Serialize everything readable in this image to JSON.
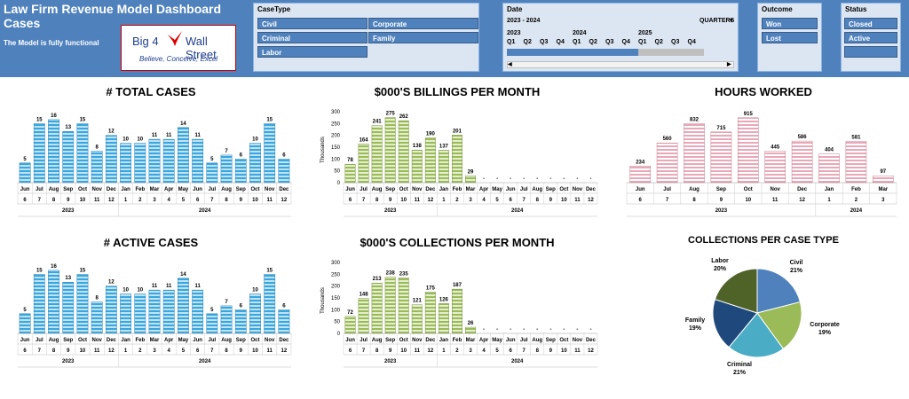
{
  "header": {
    "title": "Law Firm Revenue Model Dashboard Cases",
    "subtitle": "The Model is fully functional",
    "logo": {
      "text_left": "Big 4",
      "text_right": "Wall Street",
      "tagline": "Believe, Conceive, Excel"
    }
  },
  "slicers": {
    "casetype": {
      "title": "CaseType",
      "items": [
        "Civil",
        "Corporate",
        "Criminal",
        "Family",
        "Labor"
      ]
    },
    "date": {
      "title": "Date",
      "range": "2023 - 2024",
      "level": "QUARTERS",
      "years": [
        "2023",
        "2024",
        "2025"
      ],
      "quarters": [
        "Q1",
        "Q2",
        "Q3",
        "Q4",
        "Q1",
        "Q2",
        "Q3",
        "Q4",
        "Q1",
        "Q2",
        "Q3",
        "Q4"
      ]
    },
    "outcome": {
      "title": "Outcome",
      "items": [
        "Won",
        "Lost"
      ]
    },
    "status": {
      "title": "Status",
      "items": [
        "Closed",
        "Active"
      ]
    }
  },
  "colors": {
    "header_bg": "#4f81bd",
    "slicer_btn": "#4f81bd",
    "blue_bar": "#3aa6dd",
    "green_bar": "#9bbb59",
    "red_bar": "#e8a8b8"
  },
  "chart_data": [
    {
      "type": "bar",
      "title": "# TOTAL CASES",
      "categories": [
        "Jun",
        "Jul",
        "Aug",
        "Sep",
        "Oct",
        "Nov",
        "Dec",
        "Jan",
        "Feb",
        "Mar",
        "Apr",
        "May",
        "Jun",
        "Jul",
        "Aug",
        "Sep",
        "Oct",
        "Nov",
        "Dec"
      ],
      "month_numbers": [
        "6",
        "7",
        "8",
        "9",
        "10",
        "11",
        "12",
        "1",
        "2",
        "3",
        "4",
        "5",
        "6",
        "7",
        "8",
        "9",
        "10",
        "11",
        "12"
      ],
      "years": [
        "2023",
        "2024"
      ],
      "values": [
        5,
        15,
        16,
        13,
        15,
        8,
        12,
        10,
        10,
        11,
        11,
        14,
        11,
        5,
        7,
        6,
        10,
        15,
        6
      ]
    },
    {
      "type": "bar",
      "title": "$000'S BILLINGS PER MONTH",
      "ylabel": "Thousands",
      "yticks": [
        "0",
        "50",
        "100",
        "150",
        "200",
        "250",
        "300"
      ],
      "ylim": [
        0,
        300
      ],
      "categories": [
        "Jun",
        "Jul",
        "Aug",
        "Sep",
        "Oct",
        "Nov",
        "Dec",
        "Jan",
        "Feb",
        "Mar",
        "Apr",
        "May",
        "Jun",
        "Jul",
        "Aug",
        "Sep",
        "Oct",
        "Nov",
        "Dec"
      ],
      "month_numbers": [
        "6",
        "7",
        "8",
        "9",
        "10",
        "11",
        "12",
        "1",
        "2",
        "3",
        "4",
        "5",
        "6",
        "7",
        "8",
        "9",
        "10",
        "11",
        "12"
      ],
      "years": [
        "2023",
        "2024"
      ],
      "values": [
        78,
        164,
        241,
        275,
        262,
        138,
        190,
        137,
        201,
        29,
        0,
        0,
        0,
        0,
        0,
        0,
        0,
        0,
        0
      ],
      "labels": [
        "78",
        "164",
        "241",
        "275",
        "262",
        "138",
        "190",
        "137",
        "201",
        "29",
        "-",
        "-",
        "-",
        "-",
        "-",
        "-",
        "-",
        "-",
        "-"
      ]
    },
    {
      "type": "bar",
      "title": "HOURS WORKED",
      "categories": [
        "Jun",
        "Jul",
        "Aug",
        "Sep",
        "Oct",
        "Nov",
        "Dec",
        "Jan",
        "Feb",
        "Mar"
      ],
      "month_numbers": [
        "6",
        "7",
        "8",
        "9",
        "10",
        "11",
        "12",
        "1",
        "2",
        "3"
      ],
      "years": [
        "2023",
        "2024"
      ],
      "values": [
        234,
        560,
        832,
        715,
        915,
        445,
        586,
        404,
        581,
        97
      ]
    },
    {
      "type": "bar",
      "title": "# ACTIVE CASES",
      "categories": [
        "Jun",
        "Jul",
        "Aug",
        "Sep",
        "Oct",
        "Nov",
        "Dec",
        "Jan",
        "Feb",
        "Mar",
        "Apr",
        "May",
        "Jun",
        "Jul",
        "Aug",
        "Sep",
        "Oct",
        "Nov",
        "Dec"
      ],
      "month_numbers": [
        "6",
        "7",
        "8",
        "9",
        "10",
        "11",
        "12",
        "1",
        "2",
        "3",
        "4",
        "5",
        "6",
        "7",
        "8",
        "9",
        "10",
        "11",
        "12"
      ],
      "years": [
        "2023",
        "2024"
      ],
      "values": [
        5,
        15,
        16,
        13,
        15,
        8,
        12,
        10,
        10,
        11,
        11,
        14,
        11,
        5,
        7,
        6,
        10,
        15,
        6
      ]
    },
    {
      "type": "bar",
      "title": "$000'S COLLECTIONS PER MONTH",
      "ylabel": "Thousands",
      "yticks": [
        "0",
        "50",
        "100",
        "150",
        "200",
        "250",
        "300"
      ],
      "ylim": [
        0,
        300
      ],
      "categories": [
        "Jun",
        "Jul",
        "Aug",
        "Sep",
        "Oct",
        "Nov",
        "Dec",
        "Jan",
        "Feb",
        "Mar",
        "Apr",
        "May",
        "Jun",
        "Jul",
        "Aug",
        "Sep",
        "Oct",
        "Nov",
        "Dec"
      ],
      "month_numbers": [
        "6",
        "7",
        "8",
        "9",
        "10",
        "11",
        "12",
        "1",
        "2",
        "3",
        "4",
        "5",
        "6",
        "7",
        "8",
        "9",
        "10",
        "11",
        "12"
      ],
      "years": [
        "2023",
        "2024"
      ],
      "values": [
        72,
        148,
        213,
        238,
        235,
        121,
        175,
        126,
        187,
        26,
        0,
        0,
        0,
        0,
        0,
        0,
        0,
        0,
        0
      ],
      "labels": [
        "72",
        "148",
        "213",
        "238",
        "235",
        "121",
        "175",
        "126",
        "187",
        "26",
        "-",
        "-",
        "-",
        "-",
        "-",
        "-",
        "-",
        "-",
        "-"
      ]
    },
    {
      "type": "pie",
      "title": "COLLECTIONS PER CASE TYPE",
      "slices": [
        {
          "name": "Civil",
          "pct": "21%",
          "value": 21,
          "color": "#4f81bd"
        },
        {
          "name": "Corporate",
          "pct": "19%",
          "value": 19,
          "color": "#9bbb59"
        },
        {
          "name": "Criminal",
          "pct": "21%",
          "value": 21,
          "color": "#4bacc6"
        },
        {
          "name": "Family",
          "pct": "19%",
          "value": 19,
          "color": "#1f497d"
        },
        {
          "name": "Labor",
          "pct": "20%",
          "value": 20,
          "color": "#4f6228"
        }
      ]
    }
  ]
}
